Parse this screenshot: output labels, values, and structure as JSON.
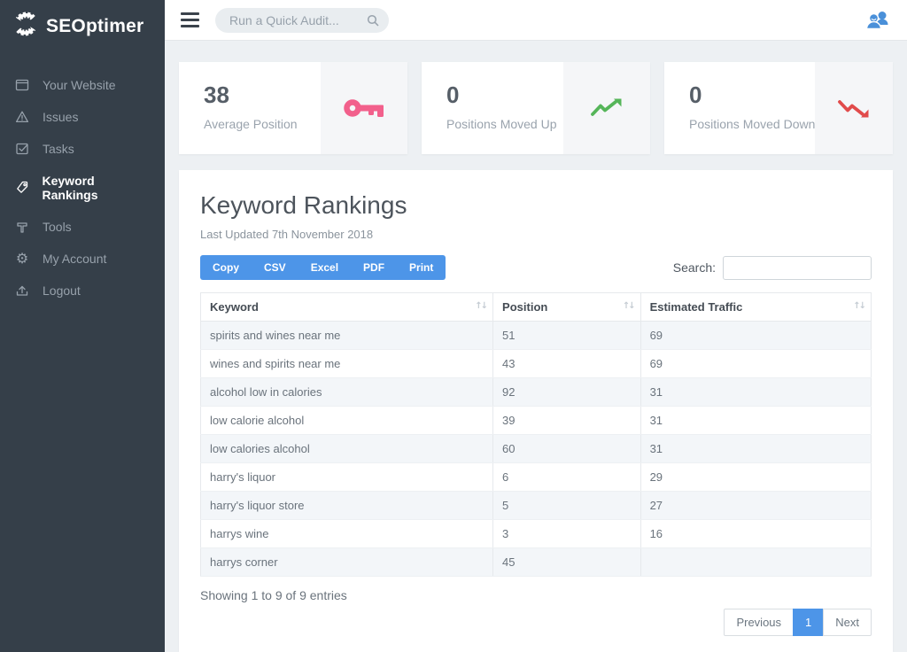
{
  "sidebar": {
    "logo_text": "SEOptimer",
    "items": [
      {
        "label": "Your Website",
        "icon": "browser-icon",
        "active": false
      },
      {
        "label": "Issues",
        "icon": "warning-icon",
        "active": false
      },
      {
        "label": "Tasks",
        "icon": "tasks-icon",
        "active": false
      },
      {
        "label": "Keyword Rankings",
        "icon": "tag-icon",
        "active": true
      },
      {
        "label": "Tools",
        "icon": "hammer-icon",
        "active": false
      },
      {
        "label": "My Account",
        "icon": "gear-icon",
        "active": false
      },
      {
        "label": "Logout",
        "icon": "logout-icon",
        "active": false
      }
    ]
  },
  "topbar": {
    "search_placeholder": "Run a Quick Audit...",
    "menu_icon": "hamburger-icon",
    "user_icon": "users-icon"
  },
  "stat_cards": [
    {
      "value": "38",
      "label": "Average Position",
      "icon": "key-icon",
      "icon_color": "#f2608c"
    },
    {
      "value": "0",
      "label": "Positions Moved Up",
      "icon": "trend-up-icon",
      "icon_color": "#55b559"
    },
    {
      "value": "0",
      "label": "Positions Moved Down",
      "icon": "trend-down-icon",
      "icon_color": "#e14b4b"
    }
  ],
  "panel": {
    "title": "Keyword Rankings",
    "subtitle": "Last Updated 7th November 2018",
    "export_buttons": [
      "Copy",
      "CSV",
      "Excel",
      "PDF",
      "Print"
    ],
    "search_label": "Search:",
    "search_value": "",
    "table": {
      "columns": [
        "Keyword",
        "Position",
        "Estimated Traffic"
      ],
      "rows": [
        [
          "spirits and wines near me",
          "51",
          "69"
        ],
        [
          "wines and spirits near me",
          "43",
          "69"
        ],
        [
          "alcohol low in calories",
          "92",
          "31"
        ],
        [
          "low calorie alcohol",
          "39",
          "31"
        ],
        [
          "low calories alcohol",
          "60",
          "31"
        ],
        [
          "harry's liquor",
          "6",
          "29"
        ],
        [
          "harry's liquor store",
          "5",
          "27"
        ],
        [
          "harrys wine",
          "3",
          "16"
        ],
        [
          "harrys corner",
          "45",
          ""
        ]
      ]
    },
    "footer_text": "Showing 1 to 9 of 9 entries",
    "pagination": {
      "previous": "Previous",
      "current": "1",
      "next": "Next"
    }
  },
  "colors": {
    "accent_blue": "#4d95e8",
    "stat_pink": "#f2608c",
    "stat_green": "#55b559",
    "stat_red": "#e14b4b",
    "sidebar_bg": "#353f49"
  }
}
